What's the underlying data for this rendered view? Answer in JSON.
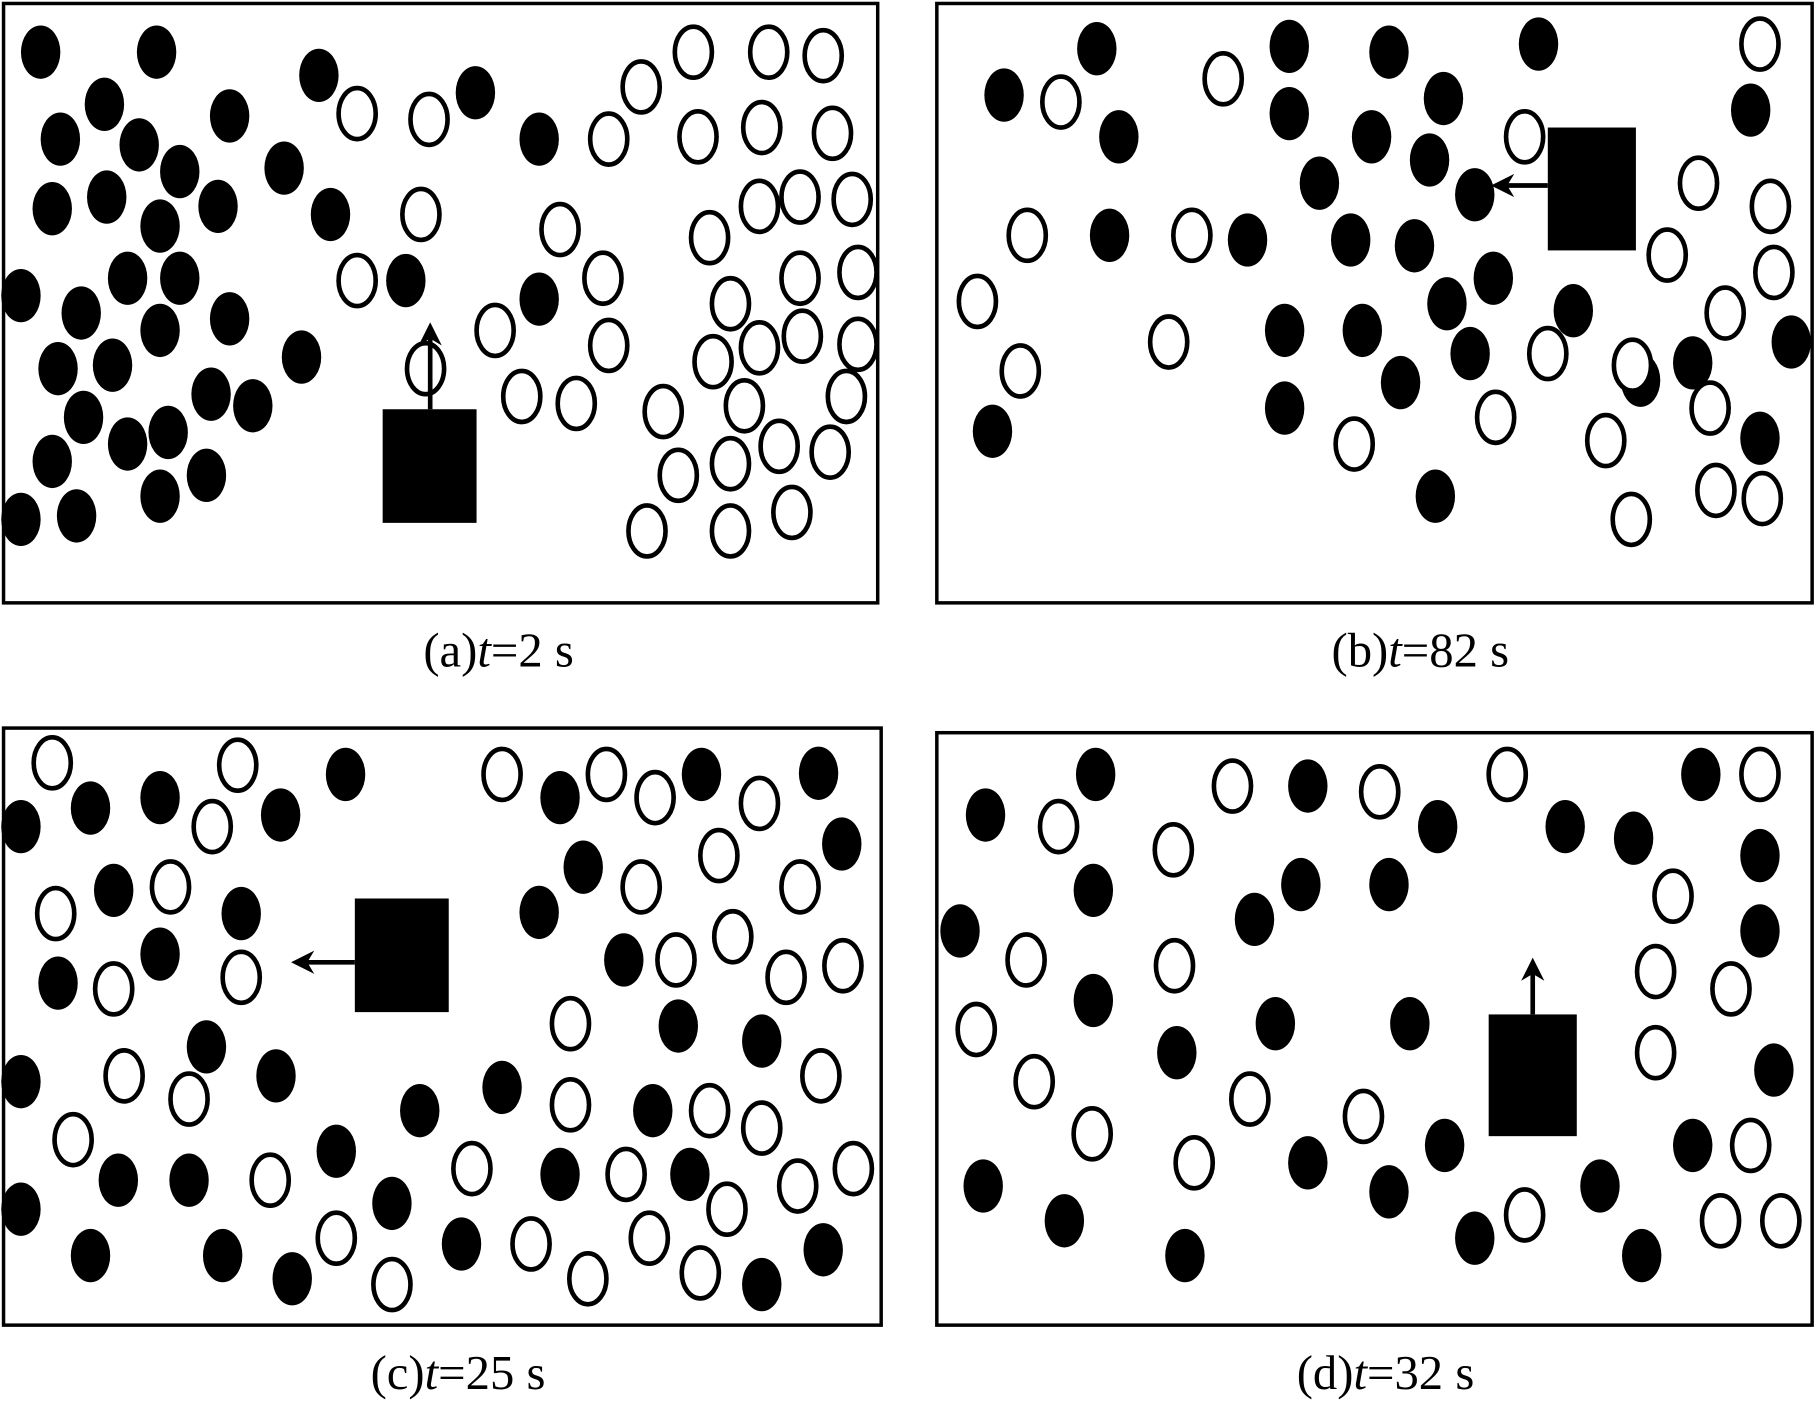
{
  "panels": [
    {
      "label": "(a)",
      "variable": "t",
      "rest": "=2 s"
    },
    {
      "label": "(b)",
      "variable": "t",
      "rest": "=82 s"
    },
    {
      "label": "(c)",
      "variable": "t",
      "rest": "=25 s"
    },
    {
      "label": "(d)",
      "variable": "t",
      "rest": "=32 s"
    }
  ]
}
